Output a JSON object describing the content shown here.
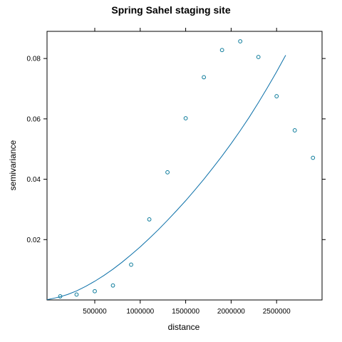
{
  "chart_data": {
    "type": "scatter",
    "title": "Spring Sahel staging site",
    "xlabel": "distance",
    "ylabel": "semivariance",
    "xlim": [
      -25000,
      3000000
    ],
    "ylim": [
      0,
      0.089
    ],
    "x_ticks": [
      500000,
      1000000,
      1500000,
      2000000,
      2500000
    ],
    "x_tick_labels": [
      "500000",
      "1000000",
      "1500000",
      "2000000",
      "2500000"
    ],
    "y_ticks": [
      0.02,
      0.04,
      0.06,
      0.08
    ],
    "y_tick_labels": [
      "0.02",
      "0.04",
      "0.06",
      "0.08"
    ],
    "grid": false,
    "colors": {
      "points": "#0a7a9a",
      "curve": "#0a6fa8",
      "frame": "#000000"
    },
    "series": [
      {
        "type": "scatter",
        "x": [
          120000,
          300000,
          500000,
          700000,
          900000,
          1100000,
          1300000,
          1500000,
          1700000,
          1900000,
          2100000,
          2300000,
          2500000,
          2700000,
          2900000
        ],
        "values": [
          0.0012,
          0.0018,
          0.0029,
          0.0048,
          0.0117,
          0.0267,
          0.0423,
          0.0602,
          0.0738,
          0.0828,
          0.0857,
          0.0805,
          0.0675,
          0.0562,
          0.0471
        ]
      },
      {
        "type": "line",
        "x": [
          -25000,
          100000,
          200000,
          300000,
          400000,
          500000,
          600000,
          700000,
          800000,
          900000,
          1000000,
          1100000,
          1200000,
          1300000,
          1400000,
          1500000,
          1600000,
          1700000,
          1800000,
          1900000,
          2000000,
          2100000,
          2200000,
          2300000,
          2400000,
          2500000,
          2600000
        ],
        "values": [
          0.0001,
          0.0009,
          0.0018,
          0.003,
          0.0045,
          0.0062,
          0.0081,
          0.0102,
          0.0125,
          0.015,
          0.0176,
          0.0204,
          0.0233,
          0.0264,
          0.0296,
          0.0329,
          0.0364,
          0.04,
          0.0438,
          0.0477,
          0.0518,
          0.0561,
          0.0606,
          0.0654,
          0.0704,
          0.0756,
          0.0811
        ]
      }
    ]
  }
}
